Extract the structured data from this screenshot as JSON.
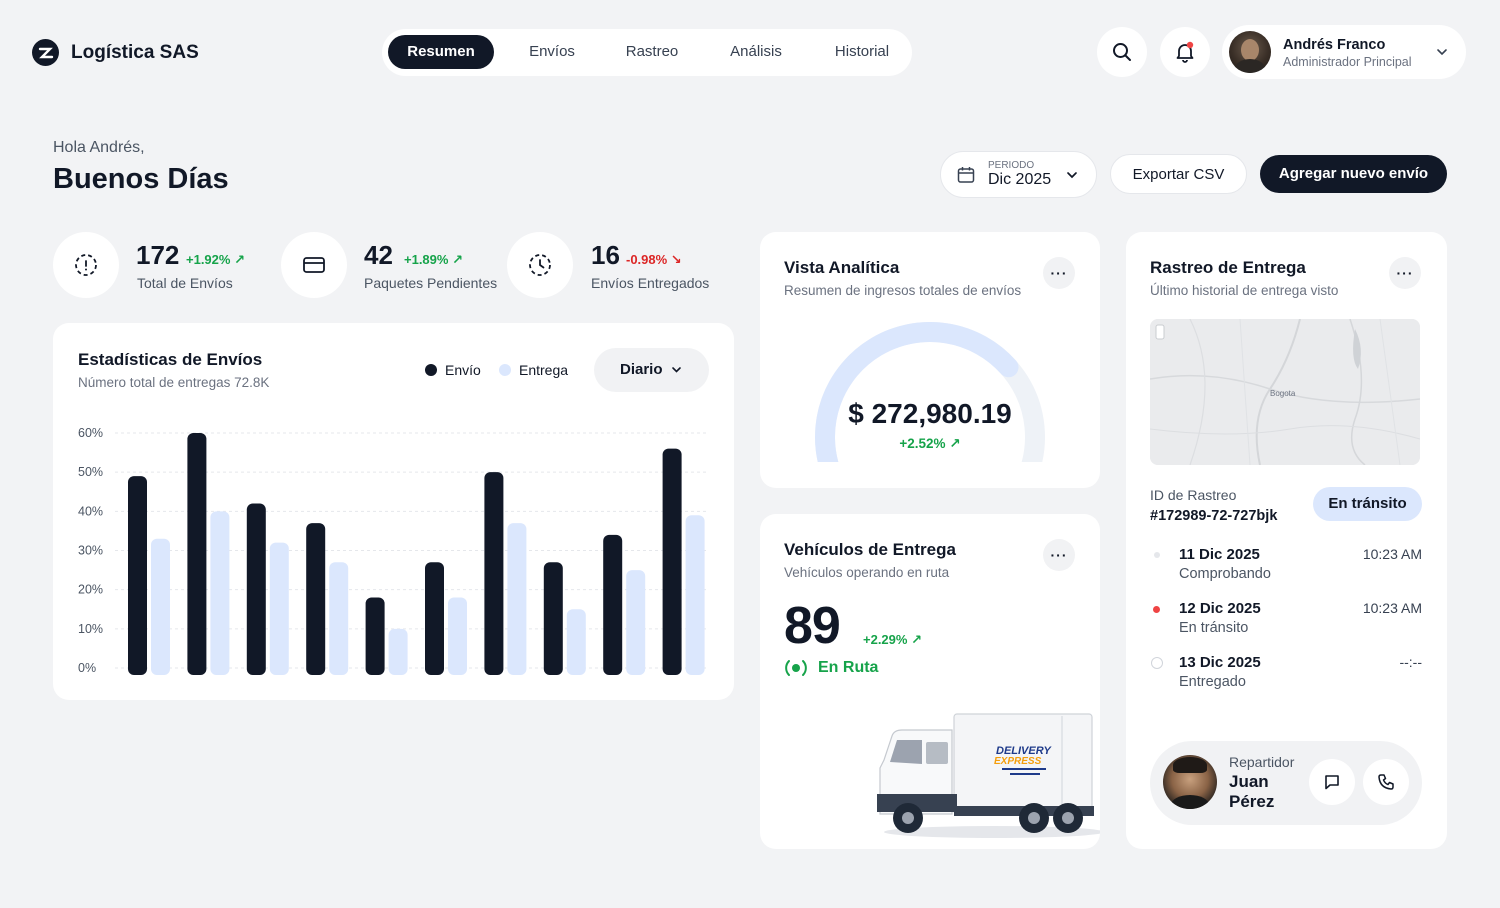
{
  "brand": {
    "name": "Logística SAS"
  },
  "nav": {
    "items": [
      "Resumen",
      "Envíos",
      "Rastreo",
      "Análisis",
      "Historial"
    ],
    "active": 0
  },
  "user": {
    "name": "Andrés Franco",
    "role": "Administrador Principal"
  },
  "greeting": {
    "hello": "Hola Andrés,",
    "title": "Buenos Días"
  },
  "toolbar": {
    "period_label": "PERIODO",
    "period_value": "Dic 2025",
    "export_label": "Exportar CSV",
    "add_label": "Agregar nuevo envío"
  },
  "stats": [
    {
      "value": "172",
      "delta": "+1.92% ↗",
      "label": "Total de Envíos",
      "trend": "up"
    },
    {
      "value": "42",
      "delta": "+1.89% ↗",
      "label": "Paquetes Pendientes",
      "trend": "up"
    },
    {
      "value": "16",
      "delta": "-0.98% ↘",
      "label": "Envíos Entregados",
      "trend": "down"
    }
  ],
  "shipments_chart": {
    "title": "Estadísticas de Envíos",
    "subtitle": "Número total de entregas 72.8K",
    "legend": [
      "Envío",
      "Entrega"
    ],
    "filter": "Diario"
  },
  "chart_data": {
    "type": "bar",
    "y_ticks": [
      "60%",
      "50%",
      "40%",
      "30%",
      "20%",
      "10%",
      "0%"
    ],
    "ylim": [
      0,
      60
    ],
    "series": [
      {
        "name": "Envío",
        "values": [
          49,
          60,
          42,
          37,
          18,
          27,
          50,
          27,
          34,
          56
        ]
      },
      {
        "name": "Entrega",
        "values": [
          33,
          40,
          32,
          27,
          10,
          18,
          37,
          15,
          25,
          39
        ]
      }
    ],
    "colors": [
      "#111827",
      "#dbe7fd"
    ],
    "grid": true
  },
  "analytics": {
    "title": "Vista Analítica",
    "subtitle": "Resumen de ingresos totales de envíos",
    "amount": "$ 272,980.19",
    "delta": "+2.52% ↗",
    "gauge_fraction": 0.72
  },
  "vehicles": {
    "title": "Vehículos de Entrega",
    "subtitle": "Vehículos operando en ruta",
    "count": "89",
    "delta": "+2.29% ↗",
    "status": "En Ruta",
    "truck_brand": "DELIVERY EXPRESS"
  },
  "tracking": {
    "title": "Rastreo de Entrega",
    "subtitle": "Último historial de entrega visto",
    "map_city": "Bogota",
    "id_label": "ID de Rastreo",
    "id_value": "#172989-72-727bjk",
    "badge": "En tránsito",
    "timeline": [
      {
        "date": "11 Dic 2025",
        "status": "Comprobando",
        "time": "10:23 AM"
      },
      {
        "date": "12 Dic 2025",
        "status": "En tránsito",
        "time": "10:23 AM"
      },
      {
        "date": "13 Dic 2025",
        "status": "Entregado",
        "time": "--:--"
      }
    ],
    "courier_label": "Repartidor",
    "courier_name": "Juan Pérez"
  }
}
